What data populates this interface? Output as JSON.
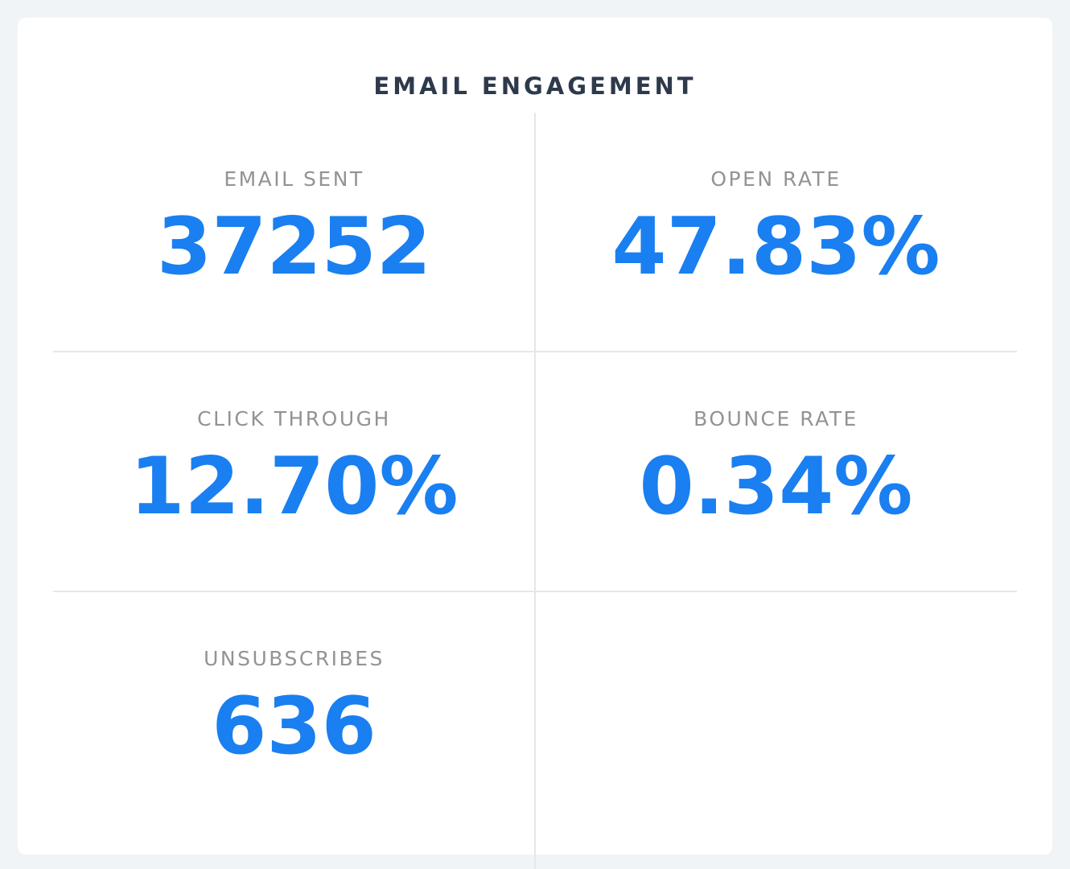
{
  "header": {
    "title": "EMAIL ENGAGEMENT"
  },
  "metrics": [
    {
      "label": "EMAIL SENT",
      "value": "37252"
    },
    {
      "label": "OPEN RATE",
      "value": "47.83%"
    },
    {
      "label": "CLICK THROUGH",
      "value": "12.70%"
    },
    {
      "label": "BOUNCE RATE",
      "value": "0.34%"
    },
    {
      "label": "UNSUBSCRIBES",
      "value": "636"
    }
  ]
}
